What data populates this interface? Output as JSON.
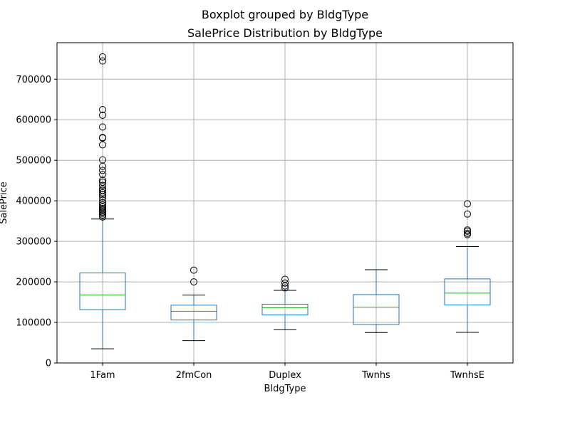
{
  "chart_data": {
    "type": "boxplot",
    "suptitle": "Boxplot grouped by BldgType",
    "title": "SalePrice Distribution by BldgType",
    "xlabel": "BldgType",
    "ylabel": "SalePrice",
    "ylim": [
      0,
      790000
    ],
    "yticks": [
      0,
      100000,
      200000,
      300000,
      400000,
      500000,
      600000,
      700000
    ],
    "grid": true,
    "colors": {
      "box": "#1f77b4",
      "median": "#2ca02c",
      "whisker": "#000000",
      "grid": "#b0b0b0"
    },
    "categories": [
      "1Fam",
      "2fmCon",
      "Duplex",
      "Twnhs",
      "TwnhsE"
    ],
    "boxes": [
      {
        "name": "1Fam",
        "whislo": 34900,
        "q1": 131500,
        "median": 167900,
        "q3": 222000,
        "whishi": 355000,
        "fliers": [
          360000,
          365000,
          369000,
          372000,
          375000,
          378000,
          381000,
          385000,
          390000,
          395000,
          402000,
          410000,
          415000,
          420000,
          426000,
          430000,
          438000,
          446000,
          451000,
          465000,
          475000,
          485000,
          501000,
          538000,
          555000,
          556000,
          582000,
          611000,
          625000,
          745000,
          755000
        ]
      },
      {
        "name": "2fmCon",
        "whislo": 55000,
        "q1": 106000,
        "median": 127500,
        "q3": 142500,
        "whishi": 167500,
        "fliers": [
          200000,
          228950
        ]
      },
      {
        "name": "Duplex",
        "whislo": 82000,
        "q1": 118500,
        "median": 135980,
        "q3": 145000,
        "whishi": 179000,
        "fliers": [
          185000,
          190000,
          197000,
          206300
        ]
      },
      {
        "name": "Twnhs",
        "whislo": 75000,
        "q1": 95000,
        "median": 137500,
        "q3": 168750,
        "whishi": 230000,
        "fliers": []
      },
      {
        "name": "TwnhsE",
        "whislo": 75500,
        "q1": 143187,
        "median": 172200,
        "q3": 207375,
        "whishi": 287000,
        "fliers": [
          316600,
          320000,
          325000,
          328000,
          367294,
          392500
        ]
      }
    ]
  }
}
